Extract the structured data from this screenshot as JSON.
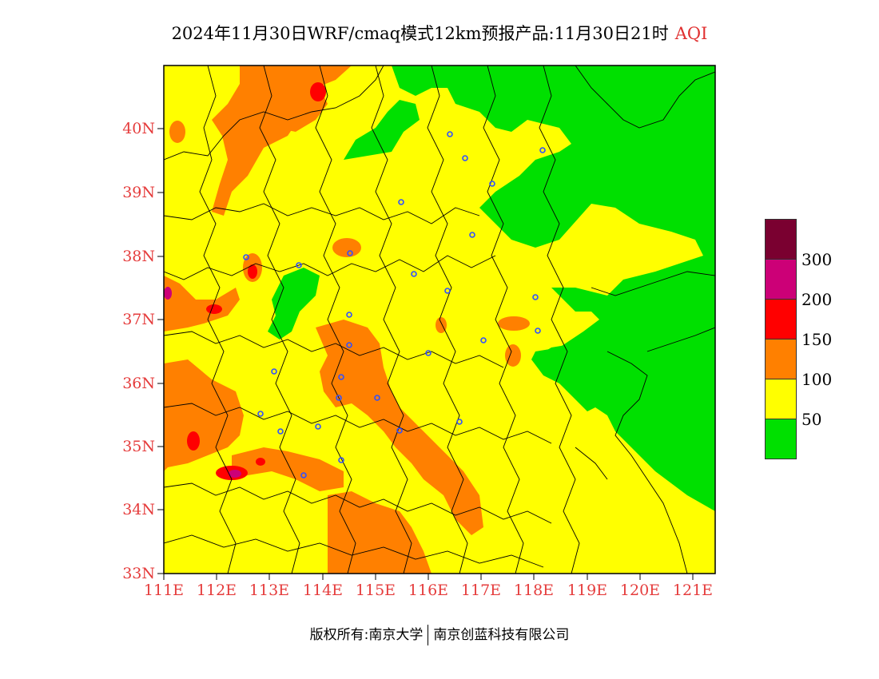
{
  "title": "2024年11月30日WRF/cmaq模式12km预报产品:11月30日21时",
  "title_tag": "AQI",
  "lat_ticks": [
    "40N",
    "39N",
    "38N",
    "37N",
    "36N",
    "35N",
    "34N",
    "33N"
  ],
  "lon_ticks": [
    "111E",
    "112E",
    "113E",
    "114E",
    "115E",
    "116E",
    "117E",
    "118E",
    "119E",
    "120E",
    "121E"
  ],
  "legend": {
    "colors": [
      "#7a0030",
      "#cc0077",
      "#ff0000",
      "#ff8000",
      "#ffff00",
      "#00e000"
    ],
    "labels": [
      "300",
      "200",
      "150",
      "100",
      "50"
    ]
  },
  "footer_left": "版权所有:南京大学",
  "footer_right": "南京创蓝科技有限公司",
  "colors": {
    "label_red": "#e53c3c",
    "good": "#00e000",
    "moderate": "#ffff00",
    "usg": "#ff8000",
    "unhealthy": "#ff0000"
  }
}
